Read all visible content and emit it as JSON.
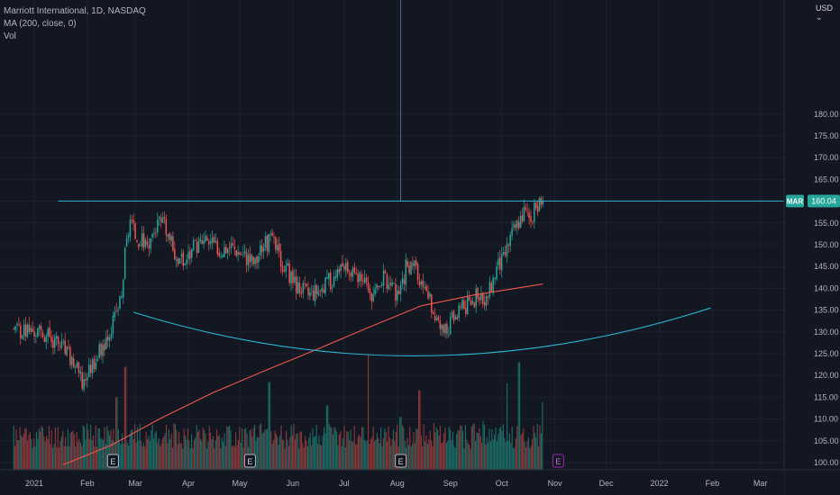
{
  "header": {
    "symbol_line": "Marriott International, 1D, NASDAQ",
    "ma_line": "MA (200, close, 0)",
    "vol_line": "Vol"
  },
  "currency_label": "USD",
  "colors": {
    "background": "#131722",
    "grid": "#1e222d",
    "axis_text": "#b2b5be",
    "up": "#26a69a",
    "down": "#ef5350",
    "up_volume": "#1c6e68",
    "down_volume": "#8e3a3b",
    "ma_line": "#f2574d",
    "drawing": "#2bb5cf",
    "price_label_bg": "#26a69a",
    "earnings_marker": "#b2b5be",
    "future_event_marker": "#9c27b0"
  },
  "chart_data": {
    "type": "candlestick",
    "title": "Marriott International, 1D, NASDAQ",
    "symbol": "MAR",
    "last_price_label": "160.04",
    "currency": "USD",
    "y_ticks": [
      100,
      105,
      110,
      115,
      120,
      125,
      130,
      135,
      140,
      145,
      150,
      155,
      160,
      165,
      170,
      175,
      180
    ],
    "y_tick_labels": [
      "100.00",
      "105.00",
      "110.00",
      "115.00",
      "120.00",
      "125.00",
      "130.00",
      "135.00",
      "140.00",
      "145.00",
      "150.00",
      "155.00",
      "160.00",
      "165.00",
      "170.00",
      "175.00",
      "180.00"
    ],
    "ylim": [
      99.7,
      184.4
    ],
    "x_tick_labels": [
      "2021",
      "Feb",
      "Mar",
      "Apr",
      "May",
      "Jun",
      "Jul",
      "Aug",
      "Sep",
      "Oct",
      "Nov",
      "Dec",
      "2022",
      "Feb",
      "Mar"
    ],
    "x_tick_dates": [
      "2021-01-01",
      "2021-02-01",
      "2021-03-01",
      "2021-04-01",
      "2021-05-01",
      "2021-06-01",
      "2021-07-01",
      "2021-08-01",
      "2021-09-01",
      "2021-10-01",
      "2021-11-01",
      "2021-12-01",
      "2022-01-01",
      "2022-02-01",
      "2022-03-01"
    ],
    "price_path": [
      [
        "2020-12-20",
        131
      ],
      [
        "2021-01-01",
        130
      ],
      [
        "2021-01-10",
        129
      ],
      [
        "2021-01-18",
        126
      ],
      [
        "2021-01-25",
        122
      ],
      [
        "2021-01-29",
        118
      ],
      [
        "2021-02-03",
        122
      ],
      [
        "2021-02-10",
        127
      ],
      [
        "2021-02-16",
        132
      ],
      [
        "2021-02-21",
        138
      ],
      [
        "2021-02-23",
        148
      ],
      [
        "2021-02-26",
        156
      ],
      [
        "2021-03-01",
        152
      ],
      [
        "2021-03-08",
        150
      ],
      [
        "2021-03-15",
        155
      ],
      [
        "2021-03-18",
        154
      ],
      [
        "2021-03-24",
        148
      ],
      [
        "2021-03-29",
        146
      ],
      [
        "2021-04-05",
        150
      ],
      [
        "2021-04-12",
        151
      ],
      [
        "2021-04-19",
        149
      ],
      [
        "2021-04-26",
        150
      ],
      [
        "2021-05-03",
        148
      ],
      [
        "2021-05-10",
        146
      ],
      [
        "2021-05-14",
        150
      ],
      [
        "2021-05-20",
        151
      ],
      [
        "2021-05-27",
        145
      ],
      [
        "2021-06-03",
        141
      ],
      [
        "2021-06-10",
        139
      ],
      [
        "2021-06-17",
        140
      ],
      [
        "2021-06-24",
        142
      ],
      [
        "2021-06-30",
        144
      ],
      [
        "2021-07-07",
        143
      ],
      [
        "2021-07-14",
        140
      ],
      [
        "2021-07-19",
        138
      ],
      [
        "2021-07-23",
        143
      ],
      [
        "2021-07-27",
        141
      ],
      [
        "2021-07-31",
        139
      ],
      [
        "2021-08-02",
        137
      ],
      [
        "2021-08-06",
        145
      ],
      [
        "2021-08-11",
        146
      ],
      [
        "2021-08-15",
        140
      ],
      [
        "2021-08-20",
        137
      ],
      [
        "2021-08-25",
        132
      ],
      [
        "2021-08-29",
        130
      ],
      [
        "2021-09-02",
        133
      ],
      [
        "2021-09-07",
        135
      ],
      [
        "2021-09-12",
        137
      ],
      [
        "2021-09-17",
        138
      ],
      [
        "2021-09-21",
        136
      ],
      [
        "2021-09-24",
        140
      ],
      [
        "2021-09-28",
        145
      ],
      [
        "2021-10-02",
        147
      ],
      [
        "2021-10-06",
        152
      ],
      [
        "2021-10-10",
        155
      ],
      [
        "2021-10-14",
        158
      ],
      [
        "2021-10-18",
        156
      ],
      [
        "2021-10-21",
        159
      ],
      [
        "2021-10-25",
        160.04
      ]
    ],
    "ma_200_path": [
      [
        "2021-01-18",
        99.5
      ],
      [
        "2021-02-15",
        104
      ],
      [
        "2021-03-15",
        110
      ],
      [
        "2021-04-15",
        116
      ],
      [
        "2021-05-15",
        121
      ],
      [
        "2021-06-15",
        126
      ],
      [
        "2021-07-15",
        131
      ],
      [
        "2021-08-15",
        136
      ],
      [
        "2021-09-15",
        138.5
      ],
      [
        "2021-10-25",
        141
      ]
    ],
    "horizontal_line": {
      "price": 160.04,
      "from_date": "2021-01-15"
    },
    "arc_drawing": [
      [
        "2021-02-28",
        134.5
      ],
      [
        "2021-08-15",
        124.5
      ],
      [
        "2022-01-31",
        135.5
      ]
    ],
    "vertical_line_date": "2021-08-03",
    "earnings_markers": [
      "2021-02-16",
      "2021-05-07",
      "2021-08-03"
    ],
    "future_event_markers": [
      "2021-11-03"
    ],
    "event_marker_letter": "E",
    "volume": {
      "start_date": "2020-12-20",
      "end_date": "2021-10-25",
      "spikes": [
        [
          "2021-02-23",
          0.88
        ],
        [
          "2021-02-18",
          0.62
        ],
        [
          "2021-05-18",
          0.75
        ],
        [
          "2021-06-21",
          0.55
        ],
        [
          "2021-07-15",
          0.98
        ],
        [
          "2021-08-03",
          0.45
        ],
        [
          "2021-08-14",
          0.68
        ],
        [
          "2021-09-20",
          0.42
        ],
        [
          "2021-10-04",
          0.74
        ],
        [
          "2021-10-11",
          0.92
        ],
        [
          "2021-10-25",
          0.58
        ]
      ]
    }
  }
}
